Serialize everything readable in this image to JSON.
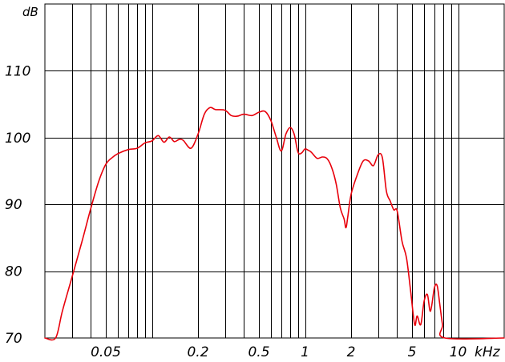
{
  "chart_data": {
    "type": "line",
    "title": "",
    "x_scale": "log",
    "x_unit": "kHz",
    "y_unit": "dB",
    "xlim": [
      0.02,
      20
    ],
    "ylim": [
      70,
      120
    ],
    "grid": true,
    "x_tick_labels": [
      {
        "value": 0.05,
        "label": "0.05"
      },
      {
        "value": 0.2,
        "label": "0.2"
      },
      {
        "value": 0.5,
        "label": "0.5"
      },
      {
        "value": 1,
        "label": "1"
      },
      {
        "value": 2,
        "label": "2"
      },
      {
        "value": 5,
        "label": "5"
      },
      {
        "value": 10,
        "label": "10"
      }
    ],
    "y_tick_labels": [
      {
        "value": 110,
        "label": "110"
      },
      {
        "value": 100,
        "label": "100"
      },
      {
        "value": 90,
        "label": "90"
      },
      {
        "value": 80,
        "label": "80"
      },
      {
        "value": 70,
        "label": "70"
      }
    ],
    "colors": {
      "series": "#e8000b",
      "grid": "#000000"
    },
    "series": [
      {
        "points": [
          [
            0.02,
            70
          ],
          [
            0.0235,
            70
          ],
          [
            0.026,
            74
          ],
          [
            0.03,
            79
          ],
          [
            0.035,
            84.5
          ],
          [
            0.04,
            89.5
          ],
          [
            0.045,
            93.5
          ],
          [
            0.05,
            96
          ],
          [
            0.055,
            97
          ],
          [
            0.06,
            97.6
          ],
          [
            0.07,
            98.2
          ],
          [
            0.08,
            98.4
          ],
          [
            0.09,
            99.2
          ],
          [
            0.1,
            99.5
          ],
          [
            0.11,
            100.3
          ],
          [
            0.12,
            99.3
          ],
          [
            0.13,
            100.1
          ],
          [
            0.14,
            99.4
          ],
          [
            0.15,
            99.7
          ],
          [
            0.16,
            99.6
          ],
          [
            0.18,
            98.4
          ],
          [
            0.2,
            100.5
          ],
          [
            0.22,
            103.5
          ],
          [
            0.24,
            104.5
          ],
          [
            0.26,
            104.2
          ],
          [
            0.3,
            104.1
          ],
          [
            0.33,
            103.3
          ],
          [
            0.36,
            103.2
          ],
          [
            0.4,
            103.5
          ],
          [
            0.45,
            103.3
          ],
          [
            0.5,
            103.8
          ],
          [
            0.55,
            103.9
          ],
          [
            0.6,
            102.5
          ],
          [
            0.65,
            100
          ],
          [
            0.7,
            98
          ],
          [
            0.75,
            100.5
          ],
          [
            0.8,
            101.5
          ],
          [
            0.85,
            100.5
          ],
          [
            0.9,
            97.8
          ],
          [
            0.95,
            97.7
          ],
          [
            1.0,
            98.3
          ],
          [
            1.05,
            98.1
          ],
          [
            1.1,
            97.8
          ],
          [
            1.2,
            96.9
          ],
          [
            1.3,
            97.1
          ],
          [
            1.4,
            96.8
          ],
          [
            1.5,
            95.4
          ],
          [
            1.6,
            93
          ],
          [
            1.7,
            89.5
          ],
          [
            1.8,
            87.8
          ],
          [
            1.85,
            86.5
          ],
          [
            1.9,
            88
          ],
          [
            2.0,
            91.5
          ],
          [
            2.2,
            94.5
          ],
          [
            2.4,
            96.5
          ],
          [
            2.6,
            96.5
          ],
          [
            2.8,
            95.8
          ],
          [
            3.0,
            97.4
          ],
          [
            3.2,
            97
          ],
          [
            3.4,
            92
          ],
          [
            3.6,
            90.5
          ],
          [
            3.8,
            89.2
          ],
          [
            4.0,
            89
          ],
          [
            4.3,
            84.5
          ],
          [
            4.6,
            82
          ],
          [
            4.9,
            77
          ],
          [
            5.2,
            72
          ],
          [
            5.4,
            73.3
          ],
          [
            5.7,
            72
          ],
          [
            6.0,
            75.5
          ],
          [
            6.3,
            76.5
          ],
          [
            6.6,
            74
          ],
          [
            7.0,
            77.5
          ],
          [
            7.3,
            77.8
          ],
          [
            7.6,
            75
          ],
          [
            7.9,
            72
          ],
          [
            8.2,
            70
          ],
          [
            20,
            70
          ]
        ]
      }
    ]
  }
}
